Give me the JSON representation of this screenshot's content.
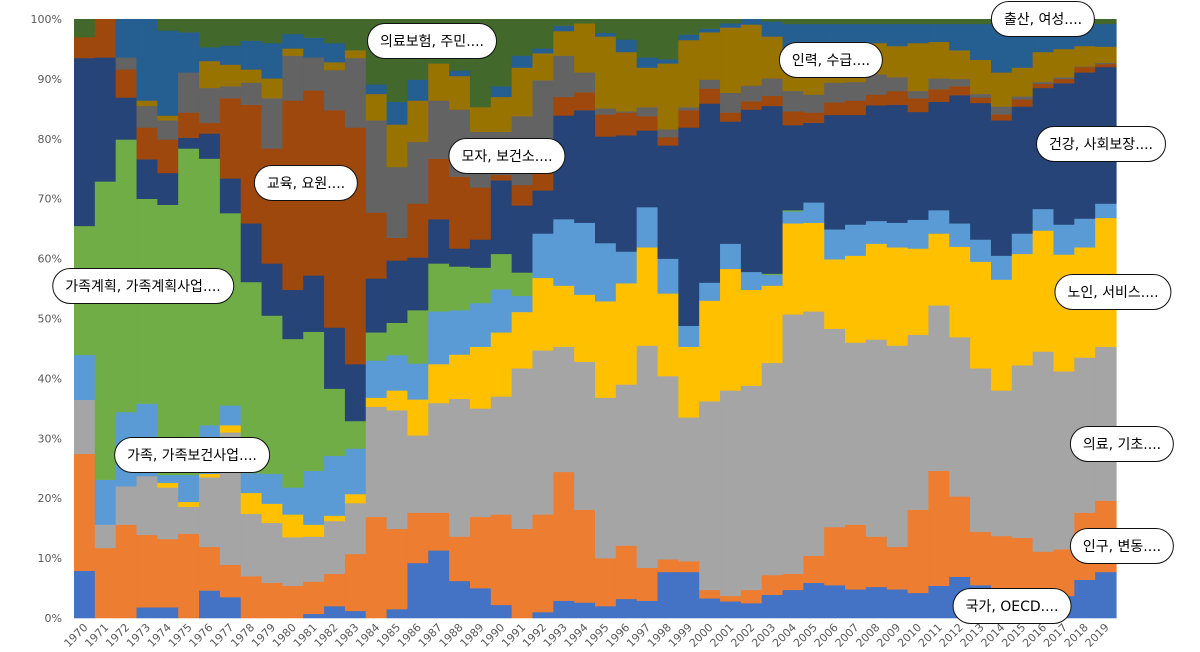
{
  "chart_data": {
    "type": "area",
    "stacking": "percent",
    "step": true,
    "title": "",
    "xlabel": "",
    "ylabel": "",
    "ylim": [
      0,
      100
    ],
    "y_ticks": [
      "0%",
      "10%",
      "20%",
      "30%",
      "40%",
      "50%",
      "60%",
      "70%",
      "80%",
      "90%",
      "100%"
    ],
    "grid": false,
    "legend": "none (callout labels)",
    "x": [
      "1970",
      "1971",
      "1972",
      "1973",
      "1974",
      "1975",
      "1976",
      "1977",
      "1978",
      "1979",
      "1980",
      "1981",
      "1982",
      "1983",
      "1984",
      "1985",
      "1986",
      "1987",
      "1988",
      "1989",
      "1990",
      "1991",
      "1992",
      "1993",
      "1994",
      "1995",
      "1996",
      "1997",
      "1998",
      "1999",
      "2000",
      "2001",
      "2002",
      "2003",
      "2004",
      "2005",
      "2006",
      "2007",
      "2008",
      "2009",
      "2010",
      "2011",
      "2012",
      "2013",
      "2014",
      "2015",
      "2016",
      "2017",
      "2018",
      "2019"
    ],
    "series": [
      {
        "name": "국가, OECD....",
        "color": "#4472C4",
        "values": [
          7.9,
          0,
          0,
          1.8,
          1.8,
          0,
          4.6,
          3.5,
          0,
          0,
          0,
          0.7,
          2.0,
          1.2,
          0,
          1.5,
          9.2,
          11.3,
          6.2,
          5.0,
          2.2,
          0,
          1.0,
          2.9,
          2.6,
          2.0,
          3.2,
          2.9,
          7.7,
          7.7,
          3.3,
          2.8,
          2.5,
          3.9,
          4.7,
          5.9,
          5.5,
          4.8,
          5.2,
          4.8,
          4.2,
          5.4,
          6.9,
          5.5,
          5.0,
          4.0,
          3.5,
          3.7,
          6.4,
          7.7
        ]
      },
      {
        "name": "인구, 변동....",
        "color": "#ED7D31",
        "values": [
          19.5,
          11.7,
          15.6,
          12.1,
          11.4,
          14.1,
          7.3,
          5.4,
          7.0,
          5.9,
          5.4,
          5.4,
          5.4,
          9.5,
          16.9,
          13.4,
          8.4,
          6.3,
          7.4,
          11.9,
          15.1,
          14.9,
          16.3,
          21.5,
          15.5,
          8.0,
          8.9,
          5.5,
          2.1,
          1.8,
          1.4,
          0.9,
          2.2,
          3.3,
          2.7,
          4.5,
          9.7,
          10.8,
          8.4,
          7.1,
          13.9,
          19.2,
          13.4,
          8.9,
          8.7,
          9.4,
          7.6,
          7.8,
          11.2,
          11.9
        ]
      },
      {
        "name": "의료, 기초....",
        "color": "#A5A5A5",
        "values": [
          9.0,
          3.9,
          6.4,
          9.8,
          8.6,
          4.5,
          11.6,
          22.1,
          10.4,
          10.0,
          8.1,
          7.5,
          8.8,
          8.5,
          18.4,
          19.8,
          12.9,
          18.3,
          23.0,
          18.1,
          19.7,
          26.8,
          27.4,
          20.9,
          24.7,
          26.8,
          26.9,
          37.1,
          30.6,
          24.0,
          31.5,
          34.3,
          34.1,
          35.4,
          43.3,
          40.8,
          33.1,
          30.4,
          32.9,
          33.6,
          29.2,
          27.6,
          26.6,
          27.3,
          24.3,
          28.8,
          33.4,
          29.7,
          25.9,
          25.7
        ]
      },
      {
        "name": "노인, 서비스....",
        "color": "#FFC000",
        "values": [
          0,
          0,
          0,
          0,
          0.8,
          0.8,
          0.6,
          1.2,
          3.5,
          3.2,
          3.8,
          2.0,
          0.9,
          1.5,
          1.5,
          3.3,
          6.0,
          6.5,
          7.4,
          10.3,
          10.7,
          9.4,
          12.1,
          10.2,
          11.2,
          16.1,
          16.9,
          16.4,
          13.8,
          11.8,
          16.8,
          20.3,
          16.0,
          12.9,
          15.2,
          14.8,
          11.6,
          14.5,
          16.0,
          16.4,
          14.4,
          12.0,
          15.1,
          17.8,
          18.5,
          18.6,
          20.2,
          19.5,
          18.4,
          21.5
        ]
      },
      {
        "name": "가족, 가족보건사업....",
        "color": "#5B9BD5",
        "values": [
          7.5,
          7.5,
          12.4,
          12.1,
          1.3,
          4.5,
          8.1,
          3.3,
          3.3,
          5.0,
          4.5,
          9.0,
          10.0,
          7.6,
          6.2,
          5.9,
          6.0,
          8.8,
          7.4,
          7.3,
          7.2,
          2.7,
          7.4,
          11.1,
          12.0,
          9.7,
          5.3,
          6.7,
          5.8,
          3.5,
          3.0,
          4.2,
          3.0,
          1.8,
          2.0,
          3.4,
          5.0,
          5.2,
          3.8,
          4.1,
          4.8,
          3.9,
          3.9,
          3.7,
          4.0,
          3.4,
          3.6,
          5.0,
          4.8,
          2.4
        ]
      },
      {
        "name": "가족계획, 가족계획사업....",
        "color": "#70AD47",
        "values": [
          21.5,
          49.8,
          45.5,
          34.2,
          45.1,
          54.5,
          44.5,
          32.1,
          31.9,
          26.4,
          24.8,
          23.2,
          11.2,
          4.6,
          4.7,
          5.4,
          8.9,
          8.0,
          7.3,
          5.9,
          5.9,
          3.9,
          0,
          0,
          0,
          0,
          0,
          0,
          0,
          0,
          0,
          0,
          0,
          0.2,
          0.2,
          0,
          0,
          0,
          0,
          0,
          0,
          0,
          0,
          0,
          0,
          0,
          0,
          0,
          0,
          0
        ]
      },
      {
        "name": "건강, 사회보장....",
        "color": "#264478",
        "values": [
          28.0,
          20.7,
          7.0,
          6.6,
          5.3,
          1.8,
          4.2,
          5.8,
          9.8,
          8.7,
          8.2,
          9.4,
          10.2,
          9.5,
          9.0,
          10.4,
          8.8,
          7.4,
          3.0,
          4.7,
          12.3,
          11.2,
          7.2,
          17.3,
          18.8,
          17.8,
          19.4,
          12.8,
          18.9,
          33.1,
          29.9,
          20.4,
          27.1,
          28.0,
          14.2,
          13.3,
          19.1,
          18.3,
          19.3,
          19.7,
          18.0,
          18.1,
          21.4,
          22.8,
          22.6,
          21.2,
          20.2,
          23.6,
          24.4,
          22.8
        ]
      },
      {
        "name": "교육, 요원....",
        "color": "#9E480E",
        "values": [
          3.5,
          6.4,
          4.7,
          5.3,
          5.6,
          4.2,
          1.8,
          13.4,
          19.8,
          19.2,
          31.6,
          30.9,
          36.3,
          39.5,
          11.0,
          3.8,
          9.0,
          10.1,
          12.0,
          8.7,
          0.9,
          3.4,
          4.3,
          3.1,
          3.0,
          3.7,
          3.8,
          2.4,
          1.4,
          2.9,
          2.5,
          1.5,
          1.4,
          1.7,
          2.3,
          1.7,
          2.1,
          2.4,
          1.8,
          2.3,
          2.3,
          2.1,
          1.5,
          0.9,
          1.0,
          1.2,
          0.7,
          0.7,
          0.9,
          0.5
        ]
      },
      {
        "name": "모자, 보건소....",
        "color": "#636363",
        "values": [
          0,
          0,
          2.0,
          3.6,
          3.2,
          6.7,
          5.8,
          2.0,
          3.7,
          8.4,
          7.5,
          5.5,
          6.7,
          11.6,
          15.4,
          11.8,
          10.3,
          9.7,
          11.2,
          9.3,
          7.2,
          11.5,
          14.1,
          6.9,
          3.3,
          1.0,
          0.2,
          1.5,
          1.3,
          0.5,
          1.5,
          3.3,
          2.6,
          2.9,
          3.4,
          3.0,
          3.3,
          3.1,
          3.4,
          2.3,
          1.2,
          1.8,
          1.2,
          0.6,
          1.3,
          0.5,
          0.3,
          0.3,
          0.1,
          0.2
        ]
      },
      {
        "name": "인력, 수급....",
        "color": "#997300",
        "values": [
          0,
          0,
          0,
          0.9,
          0.8,
          0,
          4.5,
          3.6,
          2.2,
          3.3,
          1.2,
          0,
          1.3,
          1.3,
          4.4,
          7.1,
          6.9,
          6.2,
          5.6,
          4.1,
          5.8,
          8.1,
          4.5,
          4.1,
          8.2,
          12.0,
          9.9,
          6.6,
          11.0,
          11.2,
          7.9,
          10.9,
          10.2,
          7.0,
          7.0,
          7.4,
          5.7,
          5.9,
          5.2,
          5.2,
          8.0,
          6.1,
          4.8,
          5.7,
          5.7,
          4.8,
          5.0,
          4.7,
          3.4,
          2.7
        ]
      },
      {
        "name": "출산, 여성....",
        "color": "#255E91",
        "values": [
          0,
          0,
          6.4,
          13.6,
          14.2,
          6.7,
          2.3,
          3.2,
          4.8,
          5.9,
          2.4,
          3.3,
          3.2,
          0,
          1.6,
          3.8,
          3.5,
          0,
          0.9,
          0,
          1.8,
          2.0,
          0.8,
          0.9,
          0,
          0.6,
          2.1,
          1.7,
          0.7,
          0.9,
          0.6,
          0.7,
          0.9,
          2.5,
          4.2,
          4.4,
          4.1,
          3.8,
          3.2,
          3.7,
          3.2,
          3.0,
          4.4,
          6.0,
          8.1,
          7.3,
          4.7,
          4.2,
          3.7,
          3.8
        ]
      },
      {
        "name": "의료보험, 주민....",
        "color": "#43682B",
        "values": [
          3.0,
          0,
          0,
          0,
          1.9,
          2.2,
          4.7,
          4.4,
          3.6,
          4.0,
          2.5,
          3.1,
          4.0,
          5.2,
          10.9,
          13.8,
          10.1,
          7.4,
          8.6,
          14.7,
          11.2,
          6.1,
          4.9,
          1.1,
          0.7,
          2.3,
          3.4,
          6.4,
          6.7,
          2.6,
          1.6,
          0.7,
          0,
          0.4,
          0.8,
          0.8,
          0.8,
          0.8,
          0.8,
          0.8,
          0.8,
          0.8,
          0.8,
          0.8,
          0.8,
          0.8,
          0.8,
          0.8,
          0.8,
          0.8
        ]
      }
    ]
  }
}
